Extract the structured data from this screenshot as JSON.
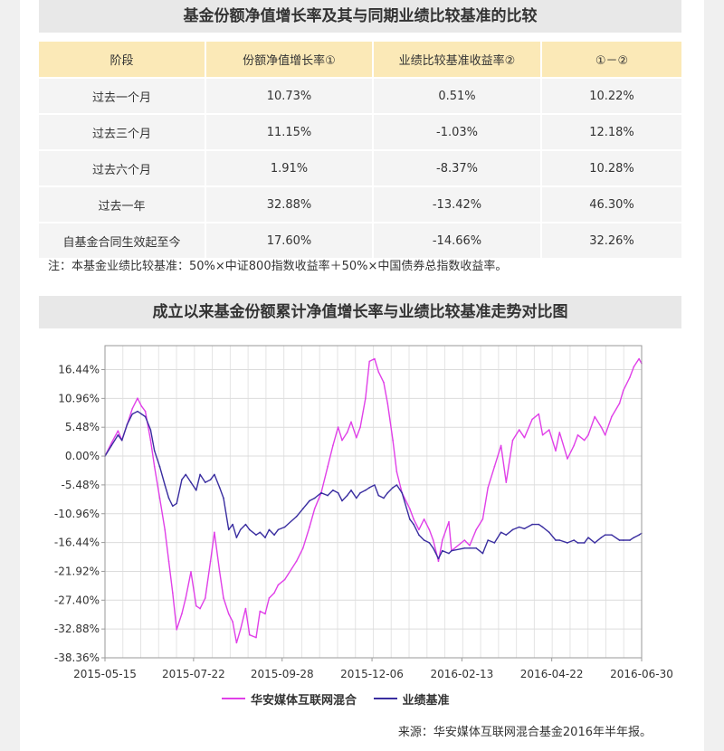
{
  "table_section": {
    "title": "基金份额净值增长率及其与同期业绩比较基准的比较",
    "headers": [
      "阶段",
      "份额净值增长率①",
      "业绩比较基准收益率②",
      "①－②"
    ],
    "rows": [
      [
        "过去一个月",
        "10.73%",
        "0.51%",
        "10.22%"
      ],
      [
        "过去三个月",
        "11.15%",
        "-1.03%",
        "12.18%"
      ],
      [
        "过去六个月",
        "1.91%",
        "-8.37%",
        "10.28%"
      ],
      [
        "过去一年",
        "32.88%",
        "-13.42%",
        "46.30%"
      ],
      [
        "自基金合同生效起至今",
        "17.60%",
        "-14.66%",
        "32.26%"
      ]
    ],
    "note": "注：本基金业绩比较基准：50%×中证800指数收益率＋50%×中国债券总指数收益率。"
  },
  "chart_section": {
    "title": "成立以来基金份额累计净值增长率与业绩比较基准走势对比图",
    "source": "来源：华安媒体互联网混合基金2016年半年报。"
  },
  "chart_data": {
    "type": "line",
    "title": "成立以来基金份额累计净值增长率与业绩比较基准走势对比图",
    "x_tick_labels": [
      "2015-05-15",
      "2015-07-22",
      "2015-09-28",
      "2015-12-06",
      "2016-02-13",
      "2016-04-22",
      "2016-06-30"
    ],
    "y_tick_labels": [
      "16.44%",
      "10.96%",
      "5.48%",
      "0.00%",
      "-5.48%",
      "-10.96%",
      "-16.44%",
      "-21.92%",
      "-27.40%",
      "-32.88%",
      "-38.36%"
    ],
    "ylim": [
      -38.36,
      21.0
    ],
    "grid": true,
    "legend_position": "bottom",
    "series": [
      {
        "name": "华安媒体互联网混合",
        "color": "#e040e8",
        "x": [
          "2015-05-15",
          "2015-05-20",
          "2015-05-25",
          "2015-05-28",
          "2015-06-01",
          "2015-06-05",
          "2015-06-09",
          "2015-06-12",
          "2015-06-15",
          "2015-06-19",
          "2015-06-22",
          "2015-06-26",
          "2015-06-30",
          "2015-07-03",
          "2015-07-06",
          "2015-07-09",
          "2015-07-13",
          "2015-07-16",
          "2015-07-20",
          "2015-07-24",
          "2015-07-27",
          "2015-07-31",
          "2015-08-04",
          "2015-08-07",
          "2015-08-11",
          "2015-08-14",
          "2015-08-18",
          "2015-08-21",
          "2015-08-24",
          "2015-08-27",
          "2015-08-31",
          "2015-09-03",
          "2015-09-08",
          "2015-09-11",
          "2015-09-15",
          "2015-09-18",
          "2015-09-22",
          "2015-09-25",
          "2015-09-30",
          "2015-10-09",
          "2015-10-14",
          "2015-10-19",
          "2015-10-23",
          "2015-10-28",
          "2015-11-02",
          "2015-11-06",
          "2015-11-10",
          "2015-11-13",
          "2015-11-17",
          "2015-11-20",
          "2015-11-24",
          "2015-11-27",
          "2015-12-01",
          "2015-12-04",
          "2015-12-08",
          "2015-12-11",
          "2015-12-15",
          "2015-12-18",
          "2015-12-22",
          "2015-12-25",
          "2015-12-29",
          "2016-01-04",
          "2016-01-07",
          "2016-01-11",
          "2016-01-15",
          "2016-01-19",
          "2016-01-22",
          "2016-01-26",
          "2016-01-29",
          "2016-02-03",
          "2016-02-05",
          "2016-02-15",
          "2016-02-19",
          "2016-02-24",
          "2016-02-29",
          "2016-03-04",
          "2016-03-09",
          "2016-03-14",
          "2016-03-18",
          "2016-03-23",
          "2016-03-28",
          "2016-04-01",
          "2016-04-07",
          "2016-04-12",
          "2016-04-15",
          "2016-04-20",
          "2016-04-25",
          "2016-04-28",
          "2016-05-04",
          "2016-05-09",
          "2016-05-12",
          "2016-05-17",
          "2016-05-20",
          "2016-05-25",
          "2016-05-30",
          "2016-06-02",
          "2016-06-07",
          "2016-06-13",
          "2016-06-16",
          "2016-06-21",
          "2016-06-24",
          "2016-06-28",
          "2016-06-30"
        ],
        "y": [
          0.0,
          2.5,
          4.8,
          3.0,
          6.0,
          9.0,
          11.0,
          9.5,
          8.5,
          3.0,
          -2.0,
          -8.0,
          -14.0,
          -20.0,
          -26.0,
          -33.0,
          -30.0,
          -27.0,
          -22.0,
          -28.5,
          -29.0,
          -27.0,
          -20.0,
          -14.5,
          -22.0,
          -27.0,
          -30.0,
          -31.5,
          -35.5,
          -33.0,
          -29.0,
          -34.0,
          -34.5,
          -29.5,
          -30.0,
          -27.0,
          -26.0,
          -24.5,
          -23.5,
          -20.0,
          -17.5,
          -13.5,
          -10.0,
          -7.0,
          -2.0,
          2.0,
          5.5,
          3.0,
          4.5,
          6.5,
          3.5,
          5.5,
          11.0,
          18.0,
          18.5,
          16.0,
          14.0,
          10.0,
          3.0,
          -3.0,
          -7.0,
          -10.0,
          -12.0,
          -14.0,
          -12.0,
          -14.0,
          -16.0,
          -20.0,
          -16.0,
          -12.5,
          -18.0,
          -16.0,
          -17.0,
          -14.0,
          -12.0,
          -6.0,
          -2.0,
          2.0,
          -5.0,
          3.0,
          5.0,
          3.5,
          7.0,
          8.0,
          4.0,
          5.0,
          1.0,
          4.5,
          -0.5,
          2.0,
          4.0,
          3.0,
          4.0,
          7.5,
          5.5,
          4.0,
          7.5,
          10.0,
          12.5,
          15.0,
          17.0,
          18.5,
          17.6
        ]
      },
      {
        "name": "业绩基准",
        "color": "#3a2ea0",
        "x": [
          "2015-05-15",
          "2015-05-20",
          "2015-05-25",
          "2015-05-28",
          "2015-06-01",
          "2015-06-05",
          "2015-06-09",
          "2015-06-12",
          "2015-06-15",
          "2015-06-19",
          "2015-06-22",
          "2015-06-26",
          "2015-06-30",
          "2015-07-03",
          "2015-07-06",
          "2015-07-09",
          "2015-07-13",
          "2015-07-16",
          "2015-07-20",
          "2015-07-24",
          "2015-07-27",
          "2015-07-31",
          "2015-08-04",
          "2015-08-07",
          "2015-08-11",
          "2015-08-14",
          "2015-08-18",
          "2015-08-21",
          "2015-08-24",
          "2015-08-27",
          "2015-08-31",
          "2015-09-03",
          "2015-09-08",
          "2015-09-11",
          "2015-09-15",
          "2015-09-18",
          "2015-09-22",
          "2015-09-25",
          "2015-09-30",
          "2015-10-09",
          "2015-10-14",
          "2015-10-19",
          "2015-10-23",
          "2015-10-28",
          "2015-11-02",
          "2015-11-06",
          "2015-11-10",
          "2015-11-13",
          "2015-11-17",
          "2015-11-20",
          "2015-11-24",
          "2015-11-27",
          "2015-12-01",
          "2015-12-04",
          "2015-12-08",
          "2015-12-11",
          "2015-12-15",
          "2015-12-18",
          "2015-12-22",
          "2015-12-25",
          "2015-12-29",
          "2016-01-04",
          "2016-01-07",
          "2016-01-11",
          "2016-01-15",
          "2016-01-19",
          "2016-01-22",
          "2016-01-26",
          "2016-01-29",
          "2016-02-03",
          "2016-02-05",
          "2016-02-15",
          "2016-02-19",
          "2016-02-24",
          "2016-02-29",
          "2016-03-04",
          "2016-03-09",
          "2016-03-14",
          "2016-03-18",
          "2016-03-23",
          "2016-03-28",
          "2016-04-01",
          "2016-04-07",
          "2016-04-12",
          "2016-04-15",
          "2016-04-20",
          "2016-04-25",
          "2016-04-28",
          "2016-05-04",
          "2016-05-09",
          "2016-05-12",
          "2016-05-17",
          "2016-05-20",
          "2016-05-25",
          "2016-05-30",
          "2016-06-02",
          "2016-06-07",
          "2016-06-13",
          "2016-06-16",
          "2016-06-21",
          "2016-06-24",
          "2016-06-28",
          "2016-06-30"
        ],
        "y": [
          0.0,
          2.0,
          4.0,
          3.0,
          6.0,
          8.0,
          8.5,
          8.0,
          7.5,
          5.0,
          1.0,
          -2.0,
          -5.5,
          -8.0,
          -9.5,
          -9.0,
          -4.5,
          -3.5,
          -5.0,
          -6.5,
          -3.5,
          -5.0,
          -4.5,
          -3.5,
          -6.0,
          -8.0,
          -14.0,
          -13.0,
          -15.5,
          -14.0,
          -13.0,
          -14.0,
          -15.0,
          -14.5,
          -15.5,
          -14.0,
          -15.0,
          -14.0,
          -13.5,
          -11.5,
          -10.0,
          -8.5,
          -8.0,
          -7.0,
          -7.5,
          -6.5,
          -7.0,
          -8.5,
          -7.5,
          -6.5,
          -8.0,
          -7.0,
          -6.5,
          -6.0,
          -5.5,
          -7.5,
          -8.0,
          -7.0,
          -6.0,
          -5.5,
          -7.0,
          -12.0,
          -13.0,
          -15.0,
          -16.0,
          -16.5,
          -17.5,
          -19.5,
          -18.0,
          -18.5,
          -18.0,
          -17.5,
          -17.5,
          -17.5,
          -18.5,
          -16.0,
          -16.5,
          -14.5,
          -15.0,
          -14.0,
          -13.5,
          -13.8,
          -13.0,
          -13.0,
          -13.5,
          -14.5,
          -16.0,
          -16.0,
          -16.5,
          -16.0,
          -16.5,
          -16.5,
          -15.5,
          -16.5,
          -15.5,
          -15.0,
          -15.0,
          -16.0,
          -16.0,
          -16.0,
          -15.5,
          -15.0,
          -14.66
        ]
      }
    ]
  }
}
